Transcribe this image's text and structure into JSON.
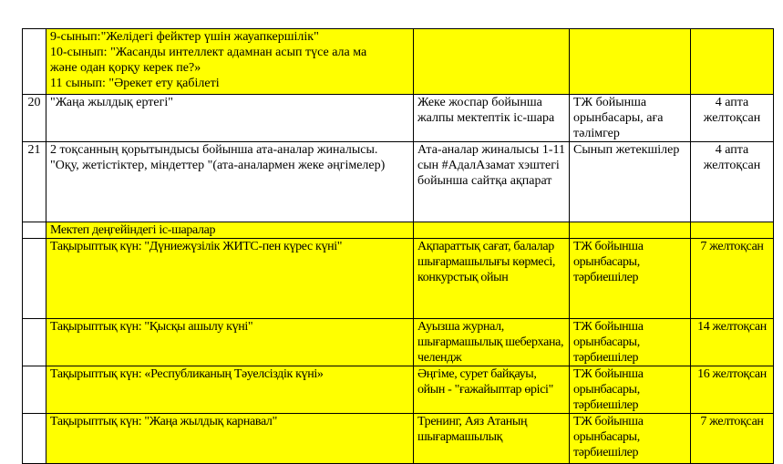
{
  "highlight_color": "#ffff00",
  "rows": [
    {
      "num": "",
      "topic_lines": [
        "9-сынып:\"Желідегі фейктер үшін жауапкершілік\"",
        "10-сынып: \"Жасанды интеллект адамнан асып түсе ала ма",
        "және одан қорқу керек пе?»",
        "11 сынып: \"Әрекет ету қабілеті"
      ],
      "form": "",
      "responsible": "",
      "date": ""
    },
    {
      "num": "20",
      "topic": "\"Жаңа жылдық ертегі\"",
      "form": "Жеке жоспар бойынша жалпы мектептік іс-шара",
      "responsible": "ТЖ бойынша орынбасары, аға тәлімгер",
      "date": "4 апта желтоқсан"
    },
    {
      "num": "21",
      "topic": "2 тоқсанның қорытындысы бойынша ата-аналар жиналысы. \"Оқу, жетістіктер, міндеттер \"(ата-аналармен жеке әңгімелер)",
      "form": "Ата-аналар жиналысы 1-11 сын #АдалАзамат хэштегі бойынша сайтқа ақпарат",
      "responsible": "Сынып жетекшілер",
      "date": "4 апта желтоқсан"
    },
    {
      "num": "",
      "topic": "Мектеп деңгейіндегі іс-шаралар",
      "form": "",
      "responsible": "",
      "date": ""
    },
    {
      "num": "",
      "topic": "Тақырыптық күн: \"Дүниежүзілік ЖИТС-пен күрес күні\"",
      "form": "Ақпараттық сағат, балалар шығармашылығы көрмесі, конкурстық ойын",
      "responsible": "ТЖ бойынша орынбасары, тәрбиешілер",
      "date": "7 желтоқсан"
    },
    {
      "num": "",
      "topic": "Тақырыптық күн: \"Қысқы ашылу күні\"",
      "form": "Ауызша журнал, шығармашылық шеберхана, челендж",
      "responsible": "ТЖ бойынша орынбасары, тәрбиешілер",
      "date": "14 желтоқсан"
    },
    {
      "num": "",
      "topic": "Тақырыптық күн: «Республиканың Тәуелсіздік күні»",
      "form": "Әңгіме, сурет байқауы, ойын - \"ғажайыптар өрісі\"",
      "responsible": "ТЖ бойынша орынбасары, тәрбиешілер",
      "date": "16 желтоқсан"
    },
    {
      "num": "",
      "topic": "Тақырыптық күн: \"Жаңа жылдық карнавал\"",
      "form": "Тренинг, Аяз Атаның шығармашылық",
      "responsible": "ТЖ бойынша орынбасары, тәрбиешілер",
      "date": "7 желтоқсан"
    }
  ]
}
